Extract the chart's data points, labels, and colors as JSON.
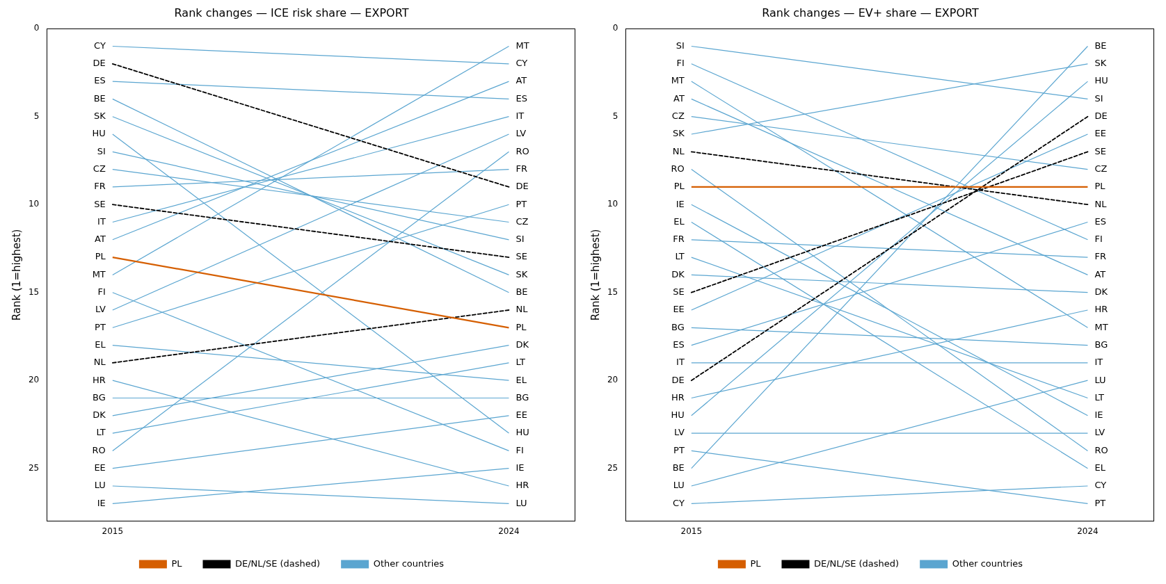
{
  "chart_data": [
    {
      "type": "line",
      "title": "Rank changes — ICE risk share — EXPORT",
      "ylabel": "Rank (1=highest)",
      "categories": [
        "2015",
        "2024"
      ],
      "ylim": [
        28,
        0
      ],
      "yticks": [
        0,
        5,
        10,
        15,
        20,
        25
      ],
      "grid": false,
      "legend": "bottom",
      "series": [
        {
          "name": "PL",
          "color": "#d55e00",
          "values": [
            13,
            17
          ]
        },
        {
          "name": "DE/NL/SE (dashed)",
          "color": "#000000",
          "line_style": "dashed",
          "values": [
            2,
            9
          ]
        },
        {
          "color": "#000000",
          "line_style": "dashed",
          "values": [
            19,
            16
          ]
        },
        {
          "color": "#000000",
          "line_style": "dashed",
          "values": [
            10,
            13
          ]
        },
        {
          "name": "Other countries",
          "color": "#5aa5d0",
          "values": [
            1,
            2
          ]
        },
        {
          "color": "#5aa5d0",
          "values": [
            3,
            4
          ]
        },
        {
          "color": "#5aa5d0",
          "values": [
            4,
            15
          ]
        },
        {
          "color": "#5aa5d0",
          "values": [
            5,
            14
          ]
        },
        {
          "color": "#5aa5d0",
          "values": [
            6,
            23
          ]
        },
        {
          "color": "#5aa5d0",
          "values": [
            7,
            12
          ]
        },
        {
          "color": "#5aa5d0",
          "values": [
            8,
            11
          ]
        },
        {
          "color": "#5aa5d0",
          "values": [
            9,
            8
          ]
        },
        {
          "color": "#5aa5d0",
          "values": [
            11,
            5
          ]
        },
        {
          "color": "#5aa5d0",
          "values": [
            12,
            3
          ]
        },
        {
          "color": "#5aa5d0",
          "values": [
            14,
            1
          ]
        },
        {
          "color": "#5aa5d0",
          "values": [
            15,
            24
          ]
        },
        {
          "color": "#5aa5d0",
          "values": [
            16,
            6
          ]
        },
        {
          "color": "#5aa5d0",
          "values": [
            17,
            10
          ]
        },
        {
          "color": "#5aa5d0",
          "values": [
            18,
            20
          ]
        },
        {
          "color": "#5aa5d0",
          "values": [
            20,
            26
          ]
        },
        {
          "color": "#5aa5d0",
          "values": [
            21,
            21
          ]
        },
        {
          "color": "#5aa5d0",
          "values": [
            22,
            18
          ]
        },
        {
          "color": "#5aa5d0",
          "values": [
            23,
            19
          ]
        },
        {
          "color": "#5aa5d0",
          "values": [
            24,
            7
          ]
        },
        {
          "color": "#5aa5d0",
          "values": [
            25,
            22
          ]
        },
        {
          "color": "#5aa5d0",
          "values": [
            26,
            27
          ]
        },
        {
          "color": "#5aa5d0",
          "values": [
            27,
            25
          ]
        }
      ],
      "annotations": [
        {
          "text": "CY",
          "x": "2015",
          "y": 1
        },
        {
          "text": "DE",
          "x": "2015",
          "y": 2
        },
        {
          "text": "ES",
          "x": "2015",
          "y": 3
        },
        {
          "text": "BE",
          "x": "2015",
          "y": 4
        },
        {
          "text": "SK",
          "x": "2015",
          "y": 5
        },
        {
          "text": "HU",
          "x": "2015",
          "y": 6
        },
        {
          "text": "SI",
          "x": "2015",
          "y": 7
        },
        {
          "text": "CZ",
          "x": "2015",
          "y": 8
        },
        {
          "text": "FR",
          "x": "2015",
          "y": 9
        },
        {
          "text": "SE",
          "x": "2015",
          "y": 10
        },
        {
          "text": "IT",
          "x": "2015",
          "y": 11
        },
        {
          "text": "AT",
          "x": "2015",
          "y": 12
        },
        {
          "text": "PL",
          "x": "2015",
          "y": 13
        },
        {
          "text": "MT",
          "x": "2015",
          "y": 14
        },
        {
          "text": "FI",
          "x": "2015",
          "y": 15
        },
        {
          "text": "LV",
          "x": "2015",
          "y": 16
        },
        {
          "text": "PT",
          "x": "2015",
          "y": 17
        },
        {
          "text": "EL",
          "x": "2015",
          "y": 18
        },
        {
          "text": "NL",
          "x": "2015",
          "y": 19
        },
        {
          "text": "HR",
          "x": "2015",
          "y": 20
        },
        {
          "text": "BG",
          "x": "2015",
          "y": 21
        },
        {
          "text": "DK",
          "x": "2015",
          "y": 22
        },
        {
          "text": "LT",
          "x": "2015",
          "y": 23
        },
        {
          "text": "RO",
          "x": "2015",
          "y": 24
        },
        {
          "text": "EE",
          "x": "2015",
          "y": 25
        },
        {
          "text": "LU",
          "x": "2015",
          "y": 26
        },
        {
          "text": "IE",
          "x": "2015",
          "y": 27
        },
        {
          "text": "MT",
          "x": "2024",
          "y": 1
        },
        {
          "text": "CY",
          "x": "2024",
          "y": 2
        },
        {
          "text": "AT",
          "x": "2024",
          "y": 3
        },
        {
          "text": "ES",
          "x": "2024",
          "y": 4
        },
        {
          "text": "IT",
          "x": "2024",
          "y": 5
        },
        {
          "text": "LV",
          "x": "2024",
          "y": 6
        },
        {
          "text": "RO",
          "x": "2024",
          "y": 7
        },
        {
          "text": "FR",
          "x": "2024",
          "y": 8
        },
        {
          "text": "DE",
          "x": "2024",
          "y": 9
        },
        {
          "text": "PT",
          "x": "2024",
          "y": 10
        },
        {
          "text": "CZ",
          "x": "2024",
          "y": 11
        },
        {
          "text": "SI",
          "x": "2024",
          "y": 12
        },
        {
          "text": "SE",
          "x": "2024",
          "y": 13
        },
        {
          "text": "SK",
          "x": "2024",
          "y": 14
        },
        {
          "text": "BE",
          "x": "2024",
          "y": 15
        },
        {
          "text": "NL",
          "x": "2024",
          "y": 16
        },
        {
          "text": "PL",
          "x": "2024",
          "y": 17
        },
        {
          "text": "DK",
          "x": "2024",
          "y": 18
        },
        {
          "text": "LT",
          "x": "2024",
          "y": 19
        },
        {
          "text": "EL",
          "x": "2024",
          "y": 20
        },
        {
          "text": "BG",
          "x": "2024",
          "y": 21
        },
        {
          "text": "EE",
          "x": "2024",
          "y": 22
        },
        {
          "text": "HU",
          "x": "2024",
          "y": 23
        },
        {
          "text": "FI",
          "x": "2024",
          "y": 24
        },
        {
          "text": "IE",
          "x": "2024",
          "y": 25
        },
        {
          "text": "HR",
          "x": "2024",
          "y": 26
        },
        {
          "text": "LU",
          "x": "2024",
          "y": 27
        }
      ]
    },
    {
      "type": "line",
      "title": "Rank changes — EV+ share — EXPORT",
      "ylabel": "Rank (1=highest)",
      "categories": [
        "2015",
        "2024"
      ],
      "ylim": [
        28,
        0
      ],
      "yticks": [
        0,
        5,
        10,
        15,
        20,
        25
      ],
      "grid": false,
      "legend": "bottom",
      "series": [
        {
          "name": "PL",
          "color": "#d55e00",
          "values": [
            9,
            9
          ]
        },
        {
          "name": "DE/NL/SE (dashed)",
          "color": "#000000",
          "line_style": "dashed",
          "values": [
            7,
            10
          ]
        },
        {
          "color": "#000000",
          "line_style": "dashed",
          "values": [
            15,
            7
          ]
        },
        {
          "color": "#000000",
          "line_style": "dashed",
          "values": [
            20,
            5
          ]
        },
        {
          "name": "Other countries",
          "color": "#5aa5d0",
          "values": [
            1,
            4
          ]
        },
        {
          "color": "#5aa5d0",
          "values": [
            2,
            12
          ]
        },
        {
          "color": "#5aa5d0",
          "values": [
            3,
            17
          ]
        },
        {
          "color": "#5aa5d0",
          "values": [
            4,
            14
          ]
        },
        {
          "color": "#5aa5d0",
          "values": [
            5,
            8
          ]
        },
        {
          "color": "#5aa5d0",
          "values": [
            6,
            2
          ]
        },
        {
          "color": "#5aa5d0",
          "values": [
            8,
            24
          ]
        },
        {
          "color": "#5aa5d0",
          "values": [
            10,
            22
          ]
        },
        {
          "color": "#5aa5d0",
          "values": [
            11,
            25
          ]
        },
        {
          "color": "#5aa5d0",
          "values": [
            12,
            13
          ]
        },
        {
          "color": "#5aa5d0",
          "values": [
            13,
            21
          ]
        },
        {
          "color": "#5aa5d0",
          "values": [
            14,
            15
          ]
        },
        {
          "color": "#5aa5d0",
          "values": [
            16,
            6
          ]
        },
        {
          "color": "#5aa5d0",
          "values": [
            17,
            18
          ]
        },
        {
          "color": "#5aa5d0",
          "values": [
            18,
            11
          ]
        },
        {
          "color": "#5aa5d0",
          "values": [
            19,
            19
          ]
        },
        {
          "color": "#5aa5d0",
          "values": [
            21,
            16
          ]
        },
        {
          "color": "#5aa5d0",
          "values": [
            22,
            3
          ]
        },
        {
          "color": "#5aa5d0",
          "values": [
            23,
            23
          ]
        },
        {
          "color": "#5aa5d0",
          "values": [
            24,
            27
          ]
        },
        {
          "color": "#5aa5d0",
          "values": [
            25,
            1
          ]
        },
        {
          "color": "#5aa5d0",
          "values": [
            26,
            20
          ]
        },
        {
          "color": "#5aa5d0",
          "values": [
            27,
            26
          ]
        }
      ],
      "annotations": [
        {
          "text": "SI",
          "x": "2015",
          "y": 1
        },
        {
          "text": "FI",
          "x": "2015",
          "y": 2
        },
        {
          "text": "MT",
          "x": "2015",
          "y": 3
        },
        {
          "text": "AT",
          "x": "2015",
          "y": 4
        },
        {
          "text": "CZ",
          "x": "2015",
          "y": 5
        },
        {
          "text": "SK",
          "x": "2015",
          "y": 6
        },
        {
          "text": "NL",
          "x": "2015",
          "y": 7
        },
        {
          "text": "RO",
          "x": "2015",
          "y": 8
        },
        {
          "text": "PL",
          "x": "2015",
          "y": 9
        },
        {
          "text": "IE",
          "x": "2015",
          "y": 10
        },
        {
          "text": "EL",
          "x": "2015",
          "y": 11
        },
        {
          "text": "FR",
          "x": "2015",
          "y": 12
        },
        {
          "text": "LT",
          "x": "2015",
          "y": 13
        },
        {
          "text": "DK",
          "x": "2015",
          "y": 14
        },
        {
          "text": "SE",
          "x": "2015",
          "y": 15
        },
        {
          "text": "EE",
          "x": "2015",
          "y": 16
        },
        {
          "text": "BG",
          "x": "2015",
          "y": 17
        },
        {
          "text": "ES",
          "x": "2015",
          "y": 18
        },
        {
          "text": "IT",
          "x": "2015",
          "y": 19
        },
        {
          "text": "DE",
          "x": "2015",
          "y": 20
        },
        {
          "text": "HR",
          "x": "2015",
          "y": 21
        },
        {
          "text": "HU",
          "x": "2015",
          "y": 22
        },
        {
          "text": "LV",
          "x": "2015",
          "y": 23
        },
        {
          "text": "PT",
          "x": "2015",
          "y": 24
        },
        {
          "text": "BE",
          "x": "2015",
          "y": 25
        },
        {
          "text": "LU",
          "x": "2015",
          "y": 26
        },
        {
          "text": "CY",
          "x": "2015",
          "y": 27
        },
        {
          "text": "BE",
          "x": "2024",
          "y": 1
        },
        {
          "text": "SK",
          "x": "2024",
          "y": 2
        },
        {
          "text": "HU",
          "x": "2024",
          "y": 3
        },
        {
          "text": "SI",
          "x": "2024",
          "y": 4
        },
        {
          "text": "DE",
          "x": "2024",
          "y": 5
        },
        {
          "text": "EE",
          "x": "2024",
          "y": 6
        },
        {
          "text": "SE",
          "x": "2024",
          "y": 7
        },
        {
          "text": "CZ",
          "x": "2024",
          "y": 8
        },
        {
          "text": "PL",
          "x": "2024",
          "y": 9
        },
        {
          "text": "NL",
          "x": "2024",
          "y": 10
        },
        {
          "text": "ES",
          "x": "2024",
          "y": 11
        },
        {
          "text": "FI",
          "x": "2024",
          "y": 12
        },
        {
          "text": "FR",
          "x": "2024",
          "y": 13
        },
        {
          "text": "AT",
          "x": "2024",
          "y": 14
        },
        {
          "text": "DK",
          "x": "2024",
          "y": 15
        },
        {
          "text": "HR",
          "x": "2024",
          "y": 16
        },
        {
          "text": "MT",
          "x": "2024",
          "y": 17
        },
        {
          "text": "BG",
          "x": "2024",
          "y": 18
        },
        {
          "text": "IT",
          "x": "2024",
          "y": 19
        },
        {
          "text": "LU",
          "x": "2024",
          "y": 20
        },
        {
          "text": "LT",
          "x": "2024",
          "y": 21
        },
        {
          "text": "IE",
          "x": "2024",
          "y": 22
        },
        {
          "text": "LV",
          "x": "2024",
          "y": 23
        },
        {
          "text": "RO",
          "x": "2024",
          "y": 24
        },
        {
          "text": "EL",
          "x": "2024",
          "y": 25
        },
        {
          "text": "CY",
          "x": "2024",
          "y": 26
        },
        {
          "text": "PT",
          "x": "2024",
          "y": 27
        }
      ]
    }
  ]
}
